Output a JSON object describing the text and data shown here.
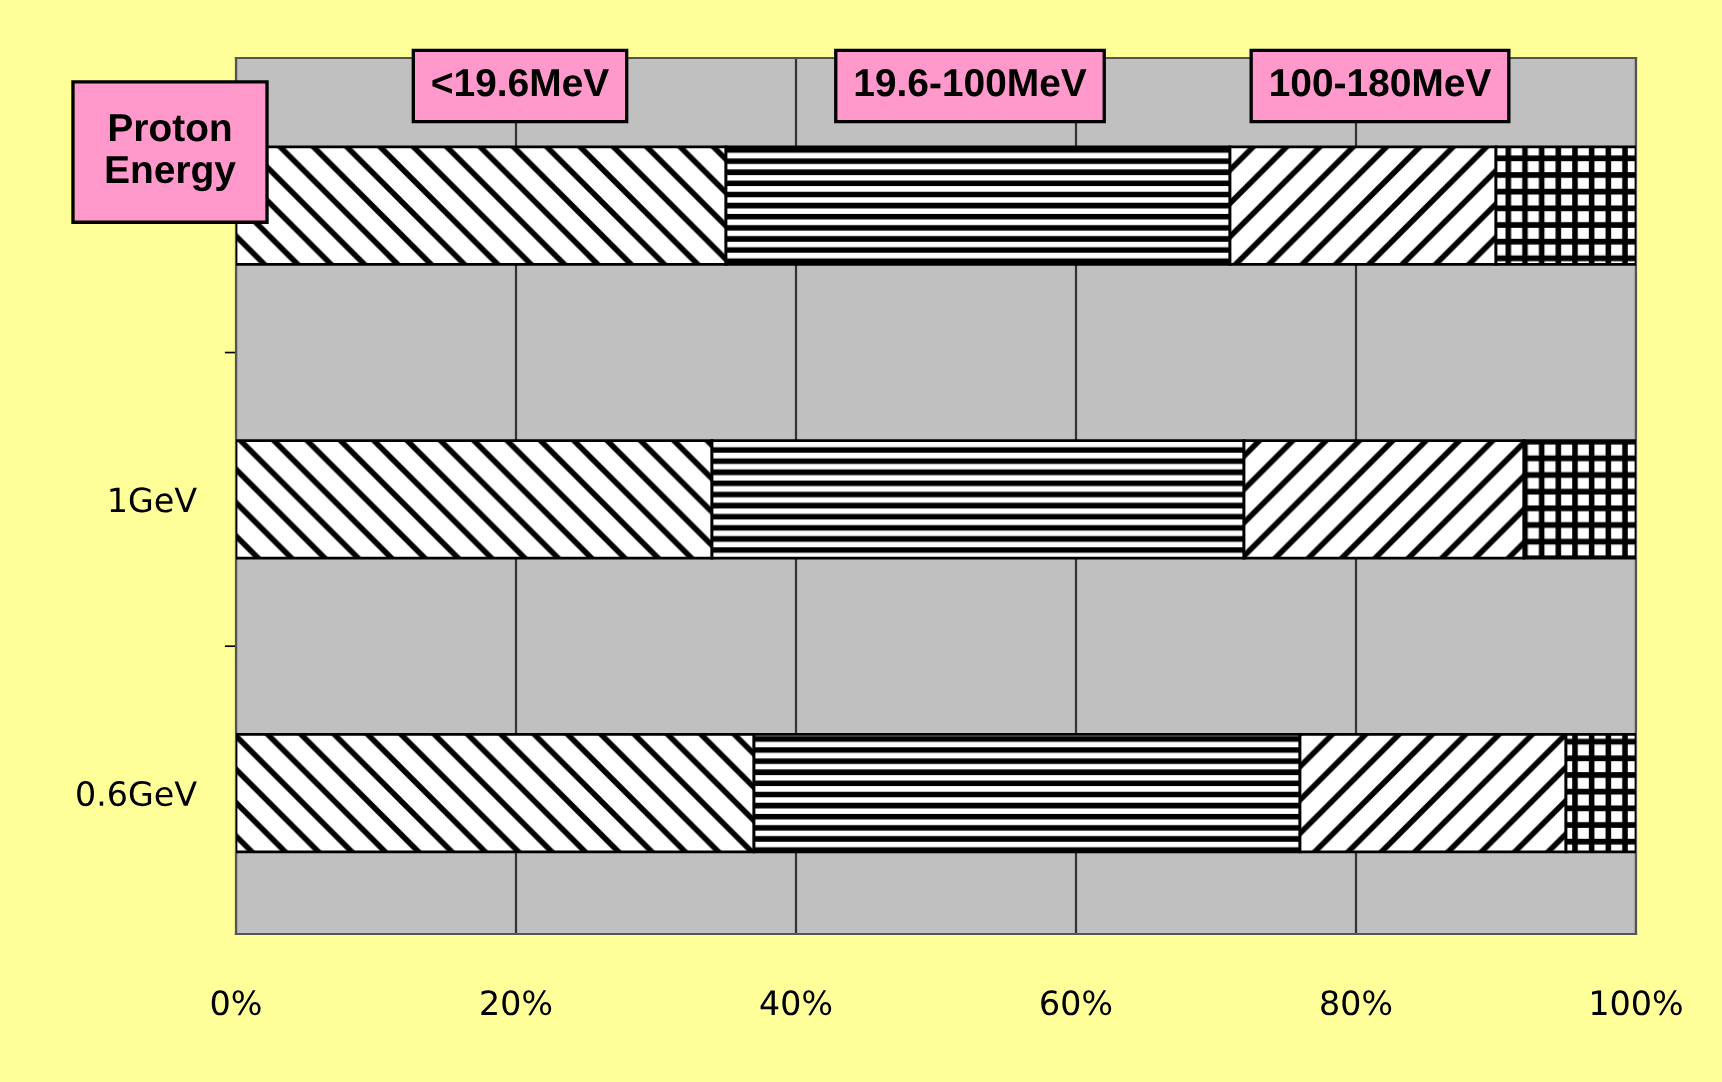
{
  "chart_data": {
    "type": "bar",
    "orientation": "horizontal",
    "stacked": true,
    "legend_title": "Proton Energy",
    "legend": "top",
    "categories": [
      null,
      "1GeV",
      "0.6GeV"
    ],
    "series": [
      {
        "name": "<19.6MeV",
        "color": "#000000",
        "values": [
          35,
          34,
          37
        ]
      },
      {
        "name": "19.6-100MeV",
        "color": "#000000",
        "values": [
          36,
          38,
          39
        ]
      },
      {
        "name": "100-180MeV",
        "color": "#000000",
        "values": [
          19,
          20,
          19
        ]
      },
      {
        "color": "#000000",
        "values": [
          10,
          8,
          5
        ]
      }
    ],
    "xlim": [
      0,
      100
    ],
    "xticks": [
      {
        "value": 0,
        "label": "0%"
      },
      {
        "value": 20,
        "label": "20%"
      },
      {
        "value": 40,
        "label": "40%"
      },
      {
        "value": 60,
        "label": "60%"
      },
      {
        "value": 80,
        "label": "80%"
      },
      {
        "value": 100,
        "label": "100%"
      }
    ],
    "grid": "x"
  }
}
